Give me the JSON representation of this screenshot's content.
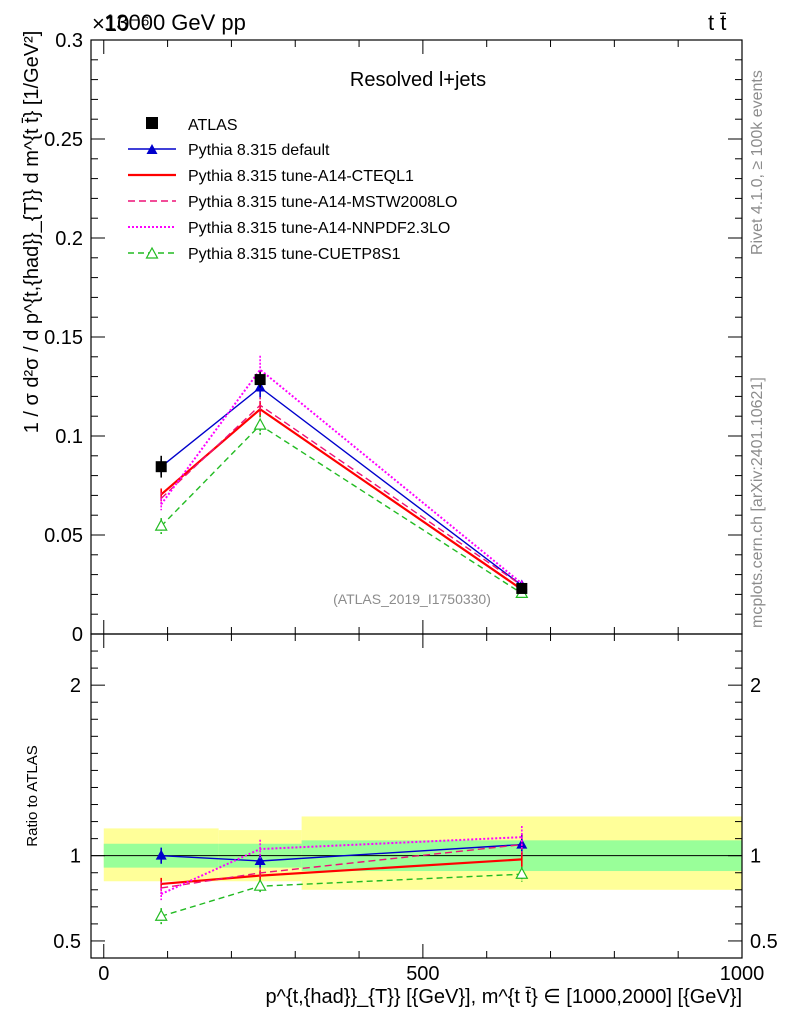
{
  "header": {
    "process": "13000 GeV pp",
    "exponent": "×10⁻⁶",
    "final_state": "t t̄",
    "rivet": "Rivet 4.1.0, ≥ 100k events",
    "mcplots": "mcplots.cern.ch [arXiv:2401.10621]"
  },
  "chart_data": {
    "type": "line",
    "main": {
      "title": "Resolved l+jets",
      "ylabel": "1 / σ d²σ / d p^{t,{had}}_{T}} d m^{t t̄} [1/GeV²]",
      "ylim": [
        0,
        0.3
      ],
      "yticks": [
        {
          "v": 0,
          "label": "0"
        },
        {
          "v": 0.05,
          "label": "0.05"
        },
        {
          "v": 0.1,
          "label": "0.1"
        },
        {
          "v": 0.15,
          "label": "0.15"
        },
        {
          "v": 0.2,
          "label": "0.2"
        },
        {
          "v": 0.25,
          "label": "0.25"
        },
        {
          "v": 0.3,
          "label": "0.3"
        }
      ],
      "watermark": "(ATLAS_2019_I1750330)"
    },
    "ratio": {
      "ylabel": "Ratio to ATLAS",
      "ylim": [
        0.4,
        2.3
      ],
      "yticks": [
        {
          "v": 0.5,
          "label": "0.5"
        },
        {
          "v": 1,
          "label": "1"
        },
        {
          "v": 2,
          "label": "2"
        }
      ],
      "bands": [
        {
          "x0": 0,
          "x1": 180,
          "stat": [
            0.93,
            1.07
          ],
          "total": [
            0.85,
            1.16
          ]
        },
        {
          "x0": 180,
          "x1": 310,
          "stat": [
            0.93,
            1.07
          ],
          "total": [
            0.85,
            1.15
          ]
        },
        {
          "x0": 310,
          "x1": 1000,
          "stat": [
            0.91,
            1.09
          ],
          "total": [
            0.8,
            1.23
          ]
        }
      ]
    },
    "xlabel": "p^{t,{had}}_{T}} [{GeV}], m^{t t̄} ∈ [1000,2000] [{GeV}]",
    "xlim": [
      -20,
      1000
    ],
    "xticks": [
      {
        "v": 0,
        "label": "0"
      },
      {
        "v": 500,
        "label": "500"
      },
      {
        "v": 1000,
        "label": "1000"
      }
    ],
    "x": [
      90,
      245,
      655
    ],
    "data": {
      "name": "ATLAS",
      "y": [
        0.0845,
        0.1285,
        0.023
      ],
      "err": [
        0.0055,
        0.004,
        0.0015
      ],
      "xerr": [
        0,
        0,
        0
      ]
    },
    "series": [
      {
        "name": "Pythia 8.315 default",
        "color": "#0000cc",
        "dash": "",
        "marker": "tri-filled",
        "y": [
          0.0845,
          0.1245,
          0.0245
        ],
        "err": [
          0.004,
          0.005,
          0.0015
        ]
      },
      {
        "name": "Pythia 8.315 tune-A14-CTEQL1",
        "color": "#ff0000",
        "dash": "",
        "marker": "none",
        "y": [
          0.0705,
          0.1135,
          0.0225
        ],
        "err": [
          0.003,
          0.004,
          0.001
        ]
      },
      {
        "name": "Pythia 8.315 tune-A14-MSTW2008LO",
        "color": "#ee1177",
        "dash": "7,4",
        "marker": "none",
        "y": [
          0.0685,
          0.1155,
          0.0245
        ],
        "err": [
          0.003,
          0.004,
          0.0015
        ]
      },
      {
        "name": "Pythia 8.315 tune-A14-NNPDF2.3LO",
        "color": "#ff00ff",
        "dash": "2,2",
        "marker": "none",
        "y": [
          0.0655,
          0.1335,
          0.0255
        ],
        "err": [
          0.003,
          0.007,
          0.0015
        ]
      },
      {
        "name": "Pythia 8.315 tune-CUETP8S1",
        "color": "#22bb22",
        "dash": "6,4",
        "marker": "tri-open",
        "y": [
          0.0545,
          0.1055,
          0.0205
        ],
        "err": [
          0.004,
          0.005,
          0.001
        ]
      }
    ]
  }
}
